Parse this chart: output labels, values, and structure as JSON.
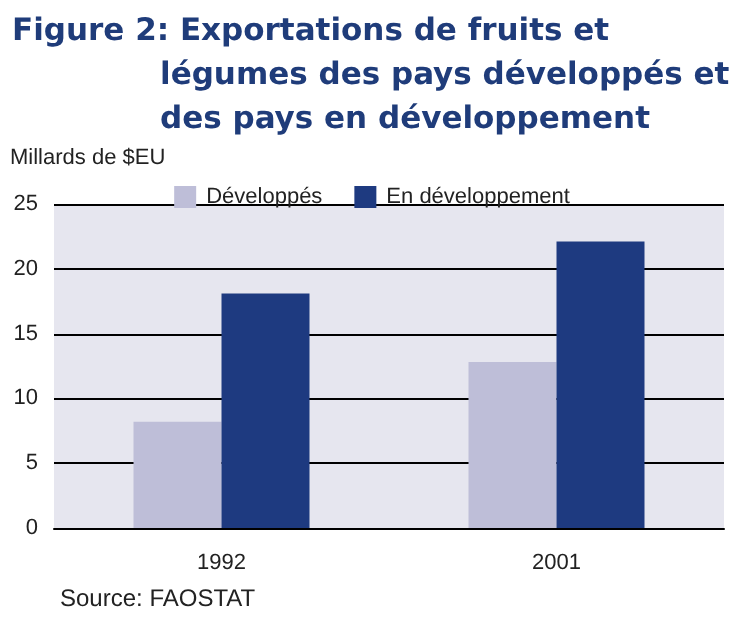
{
  "chart_data": {
    "type": "bar",
    "title": "Figure 2: Exportations de fruits et légumes des pays développés et des pays en développement",
    "ylabel": "Millards de $EU",
    "categories": [
      "1992",
      "2001"
    ],
    "series": [
      {
        "name": "Développés",
        "color": "#bebed8",
        "values": [
          8.2,
          12.8
        ]
      },
      {
        "name": "En développement",
        "color": "#1e3a80",
        "values": [
          18.1,
          22.1
        ]
      }
    ],
    "ylim": [
      0,
      25
    ],
    "yticks": [
      0,
      5,
      10,
      15,
      20,
      25
    ],
    "grid": "y",
    "legend": "top",
    "annotations": [
      "Source: FAOSTAT"
    ]
  }
}
